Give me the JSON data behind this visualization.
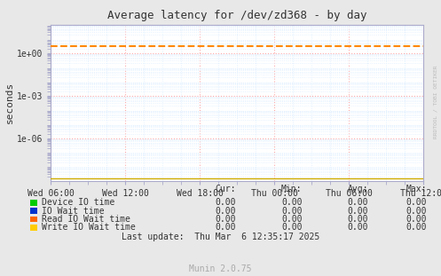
{
  "title": "Average latency for /dev/zd368 - by day",
  "ylabel": "seconds",
  "xlabel_ticks": [
    "Wed 06:00",
    "Wed 12:00",
    "Wed 18:00",
    "Thu 00:00",
    "Thu 06:00",
    "Thu 12:00"
  ],
  "ylim": [
    1e-09,
    100.0
  ],
  "xlim": [
    0,
    30
  ],
  "bg_color": "#e8e8e8",
  "plot_bg_color": "#ffffff",
  "grid_color_major": "#ffaaaa",
  "minor_grid_color": "#ddeeff",
  "dashed_line_color": "#ff8800",
  "dashed_line_y": 3.0,
  "bottom_line_color": "#ccaa00",
  "watermark": "RRDTOOL / TOBI OETIKER",
  "legend_items": [
    {
      "label": "Device IO time",
      "color": "#00cc00"
    },
    {
      "label": "IO Wait time",
      "color": "#0033cc"
    },
    {
      "label": "Read IO Wait time",
      "color": "#ff6600"
    },
    {
      "label": "Write IO Wait time",
      "color": "#ffcc00"
    }
  ],
  "table_headers": [
    "Cur:",
    "Min:",
    "Avg:",
    "Max:"
  ],
  "table_rows": [
    [
      "0.00",
      "0.00",
      "0.00",
      "0.00"
    ],
    [
      "0.00",
      "0.00",
      "0.00",
      "0.00"
    ],
    [
      "0.00",
      "0.00",
      "0.00",
      "0.00"
    ],
    [
      "0.00",
      "0.00",
      "0.00",
      "0.00"
    ]
  ],
  "last_update": "Last update:  Thu Mar  6 12:35:17 2025",
  "munin_version": "Munin 2.0.75",
  "spine_color": "#aaaacc",
  "tick_color": "#333333",
  "text_color": "#555555",
  "watermark_color": "#bbbbbb"
}
